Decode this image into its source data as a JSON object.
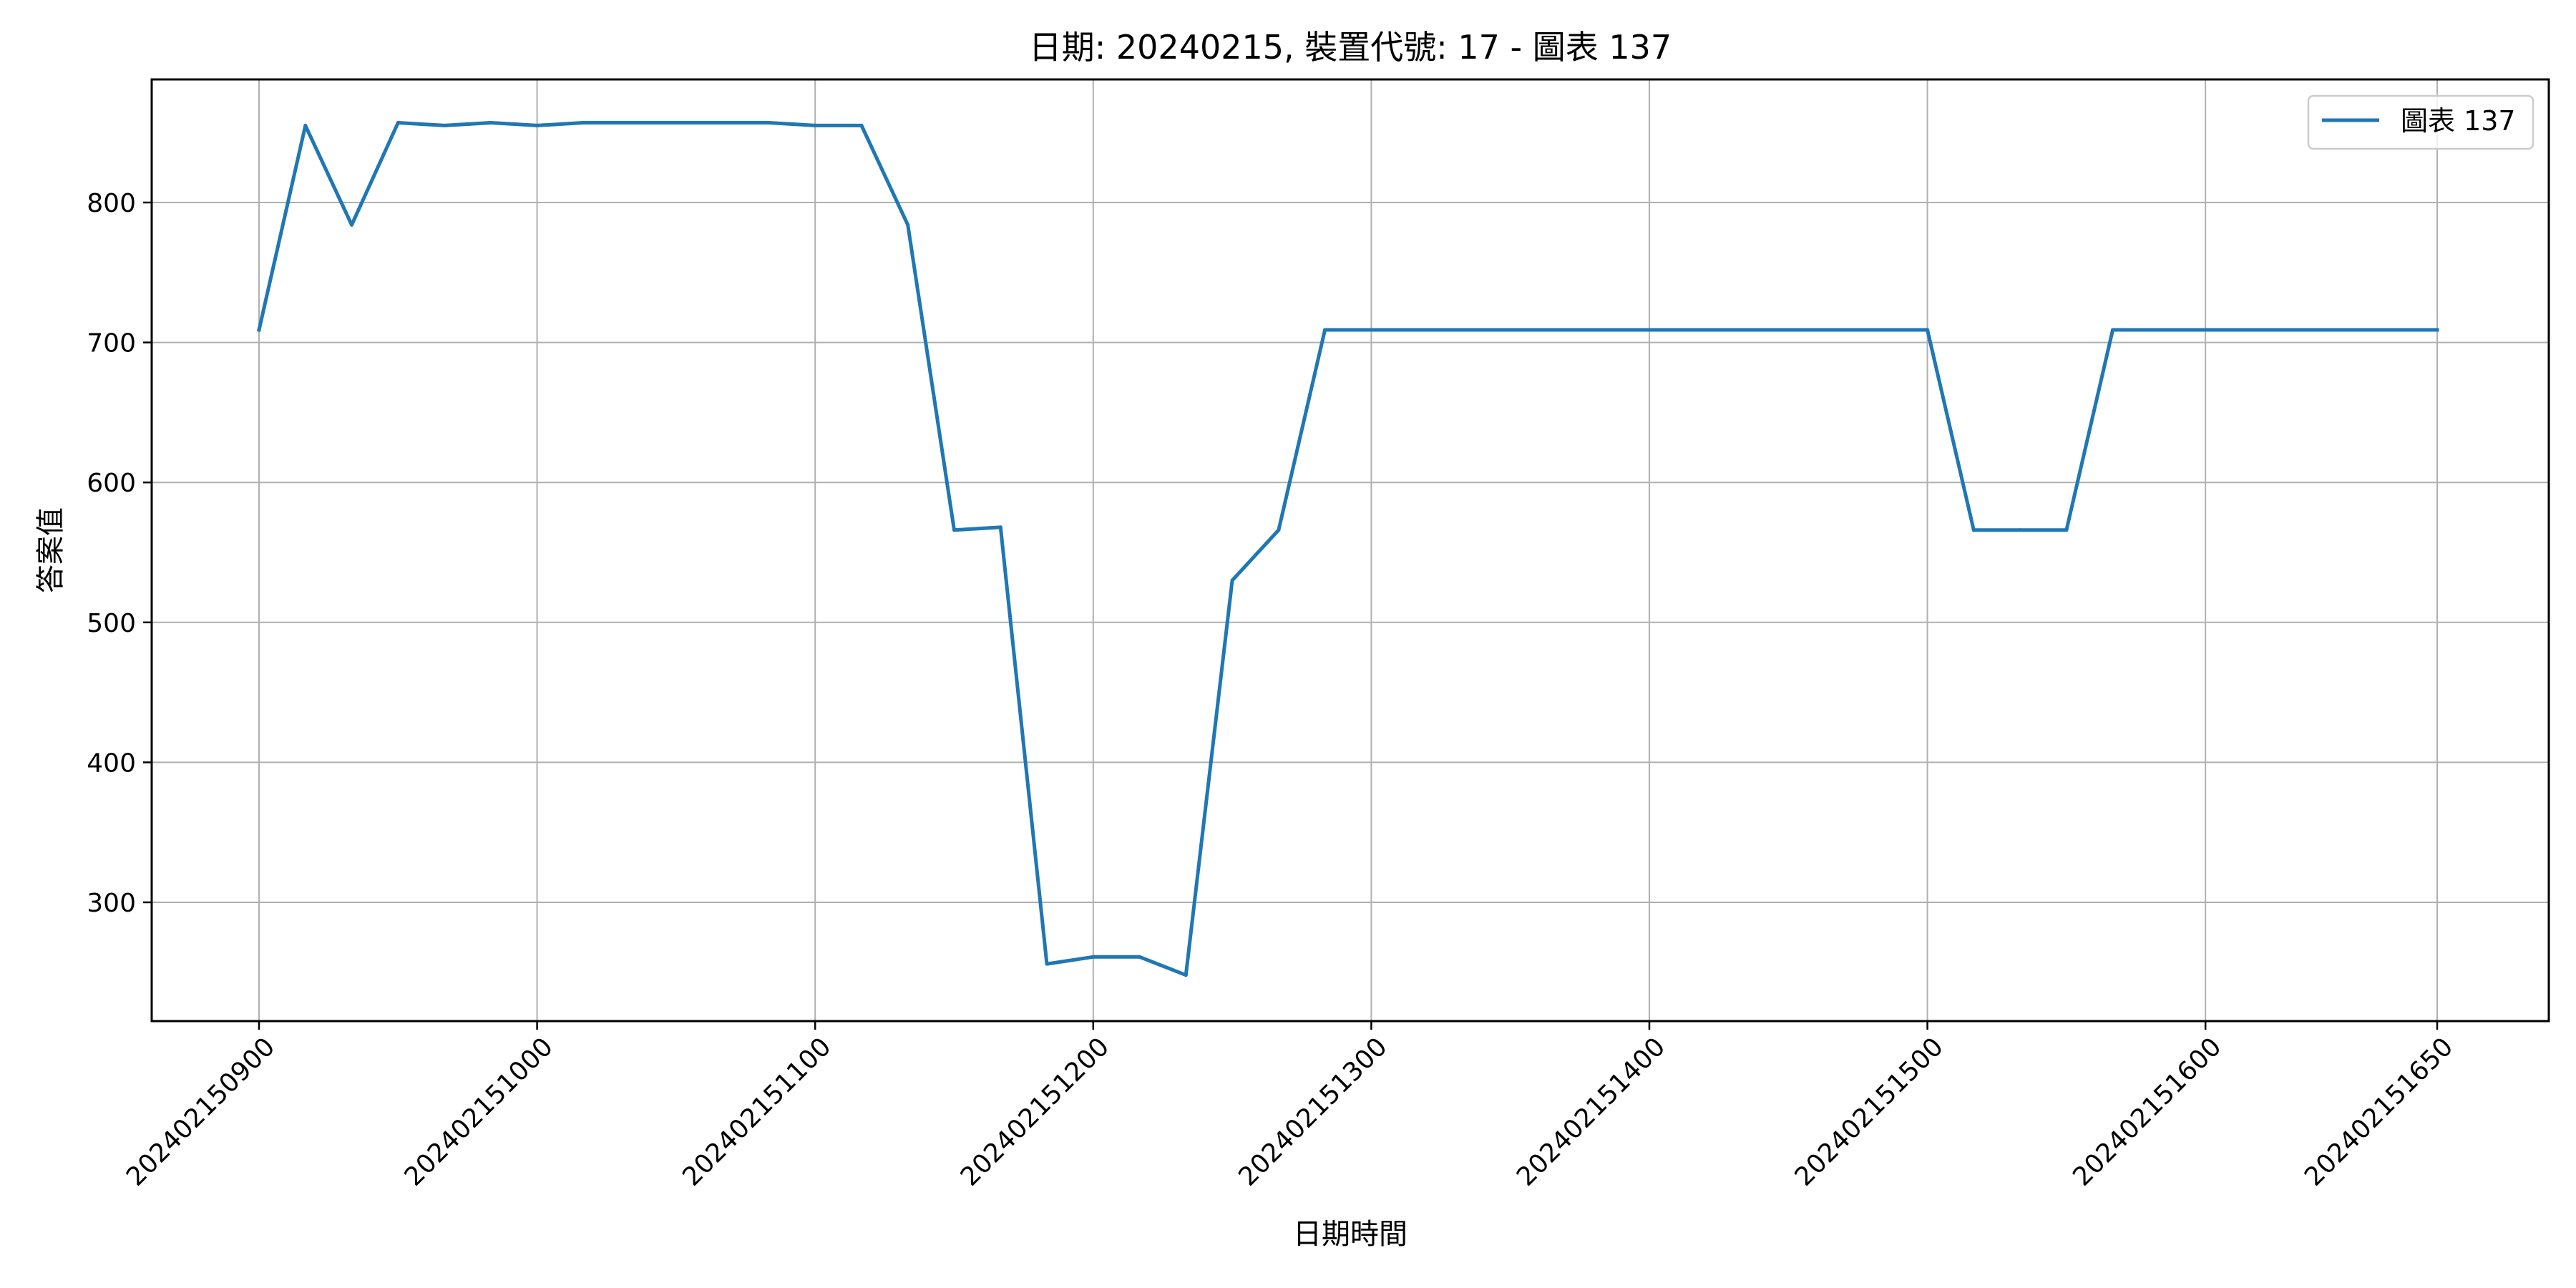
{
  "chart_data": {
    "type": "line",
    "title": "日期: 20240215, 裝置代號: 17 - 圖表 137",
    "xlabel": "日期時間",
    "ylabel": "答案值",
    "x_ticks": [
      {
        "value": "202402150900",
        "x": 0
      },
      {
        "value": "202402151000",
        "x": 60
      },
      {
        "value": "202402151100",
        "x": 120
      },
      {
        "value": "202402151200",
        "x": 180
      },
      {
        "value": "202402151300",
        "x": 240
      },
      {
        "value": "202402151400",
        "x": 300
      },
      {
        "value": "202402151500",
        "x": 360
      },
      {
        "value": "202402151600",
        "x": 420
      },
      {
        "value": "202402151650",
        "x": 470
      }
    ],
    "y_ticks": [
      300,
      400,
      500,
      600,
      700,
      800
    ],
    "ylim": [
      215,
      885
    ],
    "grid": true,
    "legend_position": "top-right",
    "line_color": "#1f77b4",
    "series": [
      {
        "name": "圖表 137",
        "x": [
          0,
          10,
          20,
          30,
          40,
          50,
          60,
          70,
          80,
          90,
          100,
          110,
          120,
          130,
          140,
          150,
          160,
          170,
          180,
          190,
          200,
          210,
          220,
          230,
          240,
          250,
          260,
          270,
          280,
          290,
          300,
          310,
          320,
          330,
          340,
          350,
          360,
          370,
          380,
          390,
          400,
          410,
          420,
          430,
          440,
          450,
          460,
          470
        ],
        "y": [
          709,
          855,
          784,
          857,
          855,
          857,
          855,
          857,
          857,
          857,
          857,
          857,
          855,
          855,
          784,
          566,
          568,
          256,
          261,
          261,
          248,
          530,
          566,
          709,
          709,
          709,
          709,
          709,
          709,
          709,
          709,
          709,
          709,
          709,
          709,
          709,
          709,
          566,
          566,
          566,
          709,
          709,
          709,
          709,
          709,
          709,
          709,
          709
        ]
      }
    ]
  }
}
